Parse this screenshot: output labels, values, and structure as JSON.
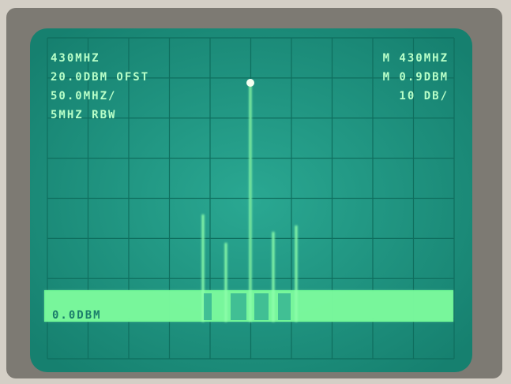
{
  "screen": {
    "left_readout": [
      "430MHZ",
      "20.0DBM OFST",
      "50.0MHZ/",
      "5MHZ RBW"
    ],
    "right_readout": [
      "M 430MHZ",
      "M 0.9DBM",
      "10 DB/"
    ],
    "reference_label": "0.0DBM"
  }
}
